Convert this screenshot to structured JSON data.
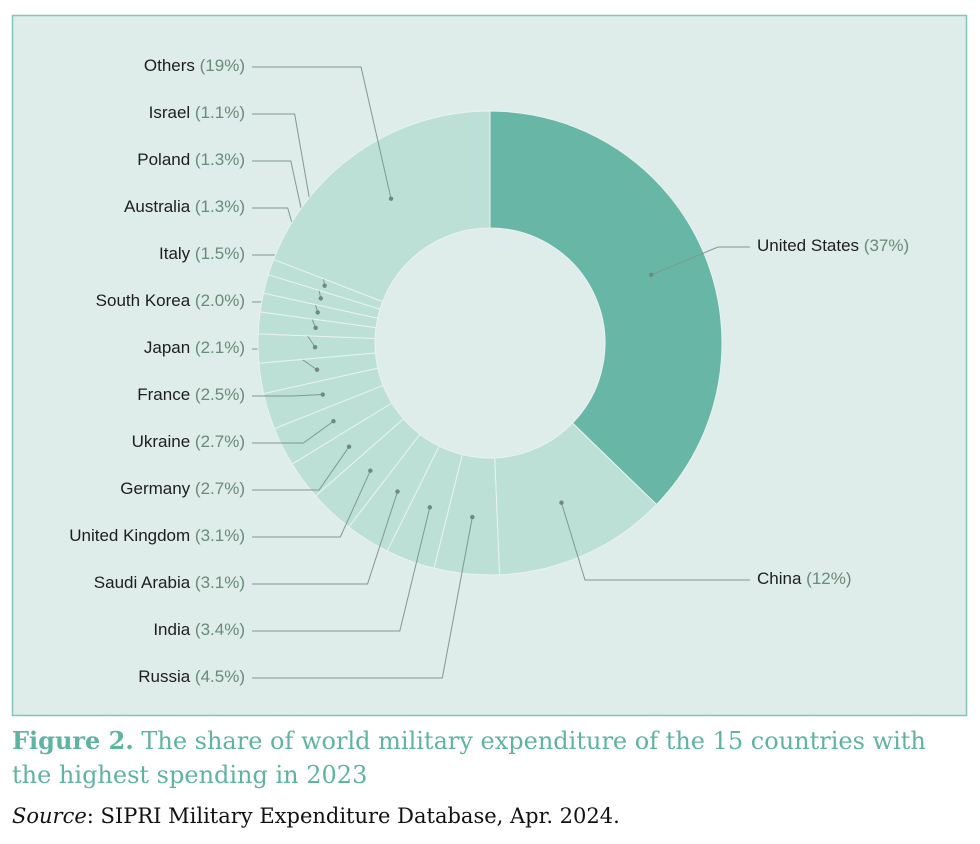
{
  "chart_data": {
    "type": "donut",
    "categories": [
      "United States",
      "China",
      "Russia",
      "India",
      "Saudi Arabia",
      "United Kingdom",
      "Germany",
      "Ukraine",
      "France",
      "Japan",
      "South Korea",
      "Italy",
      "Australia",
      "Poland",
      "Israel",
      "Others"
    ],
    "values": [
      37,
      12,
      4.5,
      3.4,
      3.1,
      3.1,
      2.7,
      2.7,
      2.5,
      2.1,
      2.0,
      1.5,
      1.3,
      1.3,
      1.1,
      19
    ],
    "value_labels": [
      "(37%)",
      "(12%)",
      "(4.5%)",
      "(3.4%)",
      "(3.1%)",
      "(3.1%)",
      "(2.7%)",
      "(2.7%)",
      "(2.5%)",
      "(2.1%)",
      "(2.0%)",
      "(1.5%)",
      "(1.3%)",
      "(1.3%)",
      "(1.1%)",
      "(19%)"
    ],
    "colors": [
      "#68b6a6",
      "#bcdfd6",
      "#bcdfd6",
      "#bcdfd6",
      "#bcdfd6",
      "#bcdfd6",
      "#bcdfd6",
      "#bcdfd6",
      "#bcdfd6",
      "#bcdfd6",
      "#bcdfd6",
      "#bcdfd6",
      "#bcdfd6",
      "#bcdfd6",
      "#bcdfd6",
      "#bcdfd6"
    ]
  },
  "caption": {
    "figure": "Figure 2.",
    "text": "The share of world military expenditure of the 15 countries with the highest spending in 2023",
    "source_label": "Source",
    "source_text": ": SIPRI Military Expenditure Database, Apr. 2024."
  }
}
